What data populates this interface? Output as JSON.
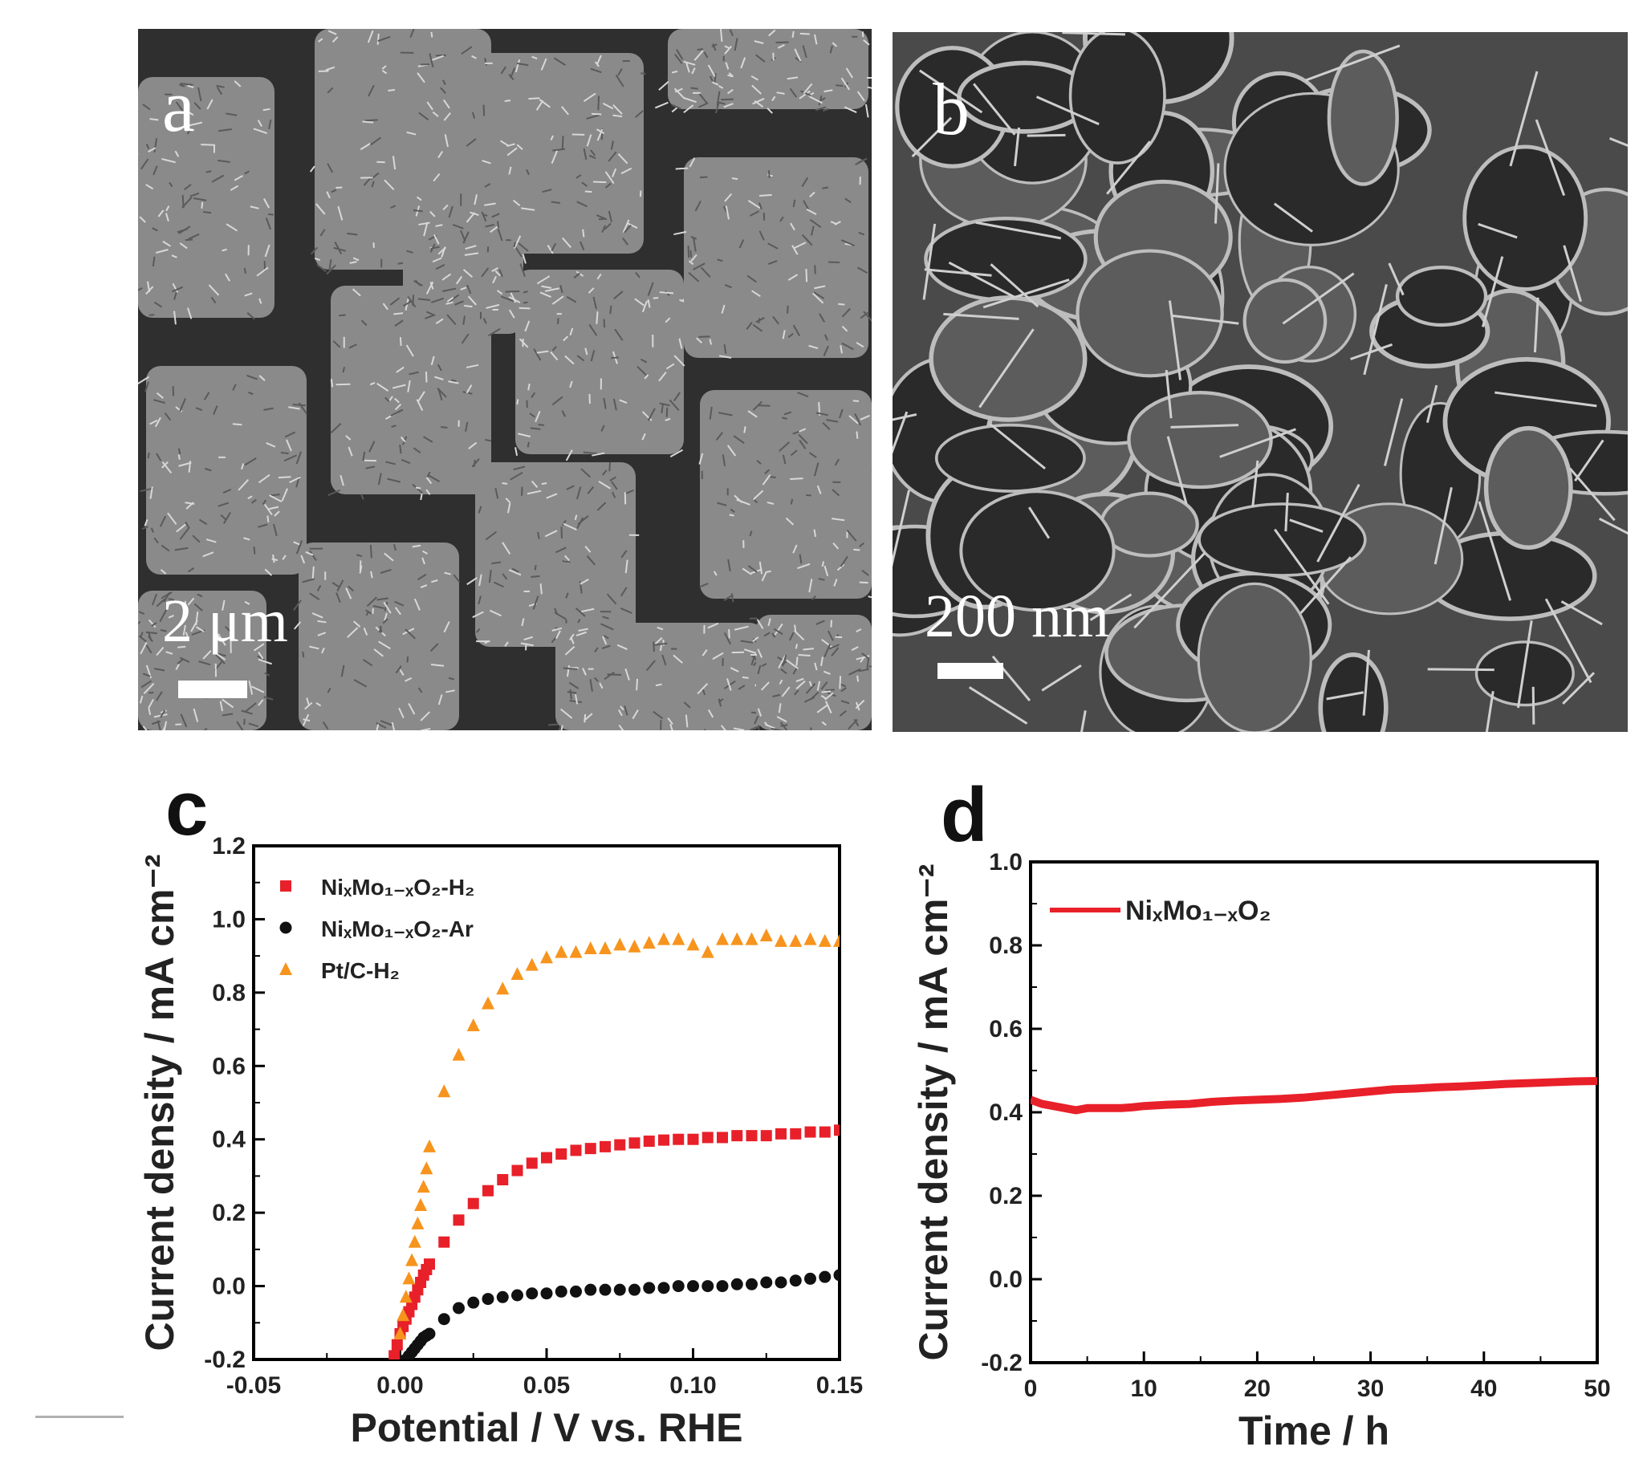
{
  "panels": {
    "a": {
      "letter": "a",
      "scale_label": "2  μm",
      "scale_fraction": 0.094
    },
    "b": {
      "letter": "b",
      "scale_label": "200  nm",
      "scale_fraction": 0.09
    },
    "c": {
      "letter": "c"
    },
    "d": {
      "letter": "d"
    }
  },
  "chart_data": [
    {
      "panel": "c",
      "type": "scatter",
      "title": "",
      "xlabel": "Potential / V vs. RHE",
      "ylabel": "Current density / mA cm⁻²",
      "xlim": [
        -0.05,
        0.15
      ],
      "ylim": [
        -0.2,
        1.2
      ],
      "xticks": [
        "-0.05",
        "0.00",
        "0.05",
        "0.10",
        "0.15"
      ],
      "yticks": [
        "-0.2",
        "0.0",
        "0.2",
        "0.4",
        "0.6",
        "0.8",
        "1.0",
        "1.2"
      ],
      "legend_position": "top-left",
      "series": [
        {
          "name": "NiₓMo₁₋ₓO₂-H₂",
          "color": "#e8202a",
          "marker": "square",
          "x": [
            -0.002,
            -0.001,
            0.0,
            0.001,
            0.002,
            0.003,
            0.004,
            0.005,
            0.006,
            0.007,
            0.008,
            0.009,
            0.01,
            0.015,
            0.02,
            0.025,
            0.03,
            0.035,
            0.04,
            0.045,
            0.05,
            0.055,
            0.06,
            0.065,
            0.07,
            0.075,
            0.08,
            0.085,
            0.09,
            0.095,
            0.1,
            0.105,
            0.11,
            0.115,
            0.12,
            0.125,
            0.13,
            0.135,
            0.14,
            0.145,
            0.15
          ],
          "y": [
            -0.19,
            -0.16,
            -0.13,
            -0.11,
            -0.09,
            -0.07,
            -0.05,
            -0.03,
            -0.01,
            0.01,
            0.03,
            0.045,
            0.06,
            0.12,
            0.18,
            0.225,
            0.26,
            0.29,
            0.315,
            0.335,
            0.35,
            0.36,
            0.37,
            0.375,
            0.38,
            0.385,
            0.39,
            0.395,
            0.398,
            0.4,
            0.4,
            0.405,
            0.405,
            0.41,
            0.41,
            0.41,
            0.415,
            0.415,
            0.42,
            0.42,
            0.425
          ]
        },
        {
          "name": "NiₓMo₁₋ₓO₂-Ar",
          "color": "#111111",
          "marker": "circle",
          "x": [
            0.002,
            0.003,
            0.004,
            0.005,
            0.006,
            0.007,
            0.008,
            0.009,
            0.01,
            0.015,
            0.02,
            0.025,
            0.03,
            0.035,
            0.04,
            0.045,
            0.05,
            0.055,
            0.06,
            0.065,
            0.07,
            0.075,
            0.08,
            0.085,
            0.09,
            0.095,
            0.1,
            0.105,
            0.11,
            0.115,
            0.12,
            0.125,
            0.13,
            0.135,
            0.14,
            0.145,
            0.15
          ],
          "y": [
            -0.2,
            -0.19,
            -0.18,
            -0.17,
            -0.16,
            -0.15,
            -0.14,
            -0.135,
            -0.13,
            -0.09,
            -0.06,
            -0.045,
            -0.035,
            -0.03,
            -0.025,
            -0.02,
            -0.02,
            -0.015,
            -0.015,
            -0.01,
            -0.01,
            -0.01,
            -0.01,
            -0.005,
            -0.005,
            0.0,
            0.0,
            0.0,
            0.0,
            0.005,
            0.005,
            0.01,
            0.01,
            0.015,
            0.02,
            0.025,
            0.03
          ]
        },
        {
          "name": "Pt/C-H₂",
          "color": "#f7941d",
          "marker": "triangle",
          "x": [
            0.0,
            0.001,
            0.002,
            0.003,
            0.004,
            0.005,
            0.006,
            0.007,
            0.008,
            0.009,
            0.01,
            0.015,
            0.02,
            0.025,
            0.03,
            0.035,
            0.04,
            0.045,
            0.05,
            0.055,
            0.06,
            0.065,
            0.07,
            0.075,
            0.08,
            0.085,
            0.09,
            0.095,
            0.1,
            0.105,
            0.11,
            0.115,
            0.12,
            0.125,
            0.13,
            0.135,
            0.14,
            0.145,
            0.15
          ],
          "y": [
            -0.13,
            -0.08,
            -0.03,
            0.02,
            0.07,
            0.12,
            0.17,
            0.22,
            0.27,
            0.32,
            0.38,
            0.53,
            0.63,
            0.71,
            0.77,
            0.81,
            0.85,
            0.875,
            0.895,
            0.91,
            0.91,
            0.92,
            0.92,
            0.93,
            0.925,
            0.935,
            0.945,
            0.945,
            0.93,
            0.91,
            0.945,
            0.945,
            0.945,
            0.955,
            0.94,
            0.94,
            0.945,
            0.94,
            0.94
          ]
        }
      ]
    },
    {
      "panel": "d",
      "type": "line",
      "title": "",
      "xlabel": "Time / h",
      "ylabel": "Current density / mA cm⁻²",
      "xlim": [
        0,
        50
      ],
      "ylim": [
        -0.2,
        1.0
      ],
      "xticks": [
        "0",
        "10",
        "20",
        "30",
        "40",
        "50"
      ],
      "yticks": [
        "-0.2",
        "0.0",
        "0.2",
        "0.4",
        "0.6",
        "0.8",
        "1.0"
      ],
      "legend_position": "top-left",
      "series": [
        {
          "name": "NiₓMo₁₋ₓO₂",
          "color": "#e8202a",
          "x": [
            0,
            1,
            2,
            3,
            4,
            5,
            6,
            7,
            8,
            9,
            10,
            12,
            14,
            16,
            18,
            20,
            22,
            24,
            26,
            28,
            30,
            32,
            34,
            36,
            38,
            40,
            42,
            44,
            46,
            48,
            50
          ],
          "y": [
            0.43,
            0.42,
            0.415,
            0.41,
            0.405,
            0.41,
            0.41,
            0.41,
            0.41,
            0.412,
            0.415,
            0.418,
            0.42,
            0.425,
            0.428,
            0.43,
            0.432,
            0.435,
            0.44,
            0.445,
            0.45,
            0.455,
            0.457,
            0.46,
            0.462,
            0.465,
            0.468,
            0.47,
            0.472,
            0.474,
            0.475
          ]
        }
      ]
    }
  ]
}
